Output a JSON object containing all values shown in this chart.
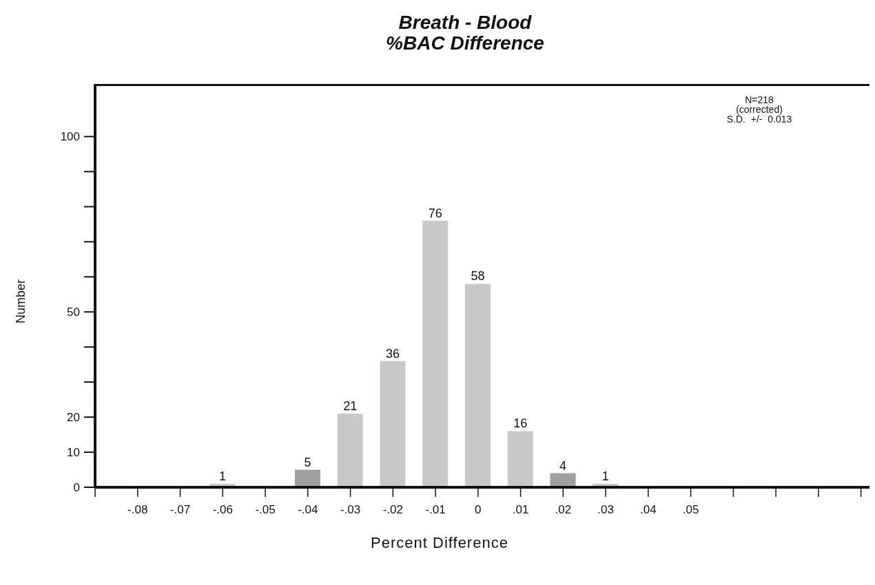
{
  "chart_data": {
    "type": "bar",
    "title": "Breath - Blood\n%BAC Difference",
    "xlabel": "Percent Difference",
    "ylabel": "Number",
    "x": [
      -0.06,
      -0.04,
      -0.03,
      -0.02,
      -0.01,
      0,
      0.01,
      0.02,
      0.03
    ],
    "values": [
      1,
      5,
      21,
      36,
      76,
      58,
      16,
      4,
      1
    ],
    "colors": [
      "#c8c8c8",
      "#a0a0a0",
      "#c8c8c8",
      "#c8c8c8",
      "#c8c8c8",
      "#c8c8c8",
      "#c8c8c8",
      "#a0a0a0",
      "#c8c8c8"
    ],
    "data_labels": true,
    "xlim": [
      -0.09,
      0.092
    ],
    "xticks": [
      {
        "value": -0.09,
        "label": null
      },
      {
        "value": -0.08,
        "label": "-.08"
      },
      {
        "value": -0.07,
        "label": "-.07"
      },
      {
        "value": -0.06,
        "label": "-.06"
      },
      {
        "value": -0.05,
        "label": "-.05"
      },
      {
        "value": -0.04,
        "label": "-.04"
      },
      {
        "value": -0.03,
        "label": "-.03"
      },
      {
        "value": -0.02,
        "label": "-.02"
      },
      {
        "value": -0.01,
        "label": "-.01"
      },
      0,
      {
        "value": 0.01,
        "label": ".01"
      },
      {
        "value": 0.02,
        "label": ".02"
      },
      {
        "value": 0.03,
        "label": ".03"
      },
      {
        "value": 0.04,
        "label": ".04"
      },
      {
        "value": 0.05,
        "label": ".05"
      },
      {
        "value": 0.06,
        "label": null
      },
      {
        "value": 0.07,
        "label": null
      },
      {
        "value": 0.08,
        "label": null
      },
      {
        "value": 0.09,
        "label": null
      }
    ],
    "ylim": [
      0,
      115
    ],
    "yticks": [
      0,
      10,
      20,
      {
        "value": 30,
        "label": null
      },
      {
        "value": 40,
        "label": null
      },
      50,
      {
        "value": 60,
        "label": null
      },
      {
        "value": 70,
        "label": null
      },
      {
        "value": 80,
        "label": null
      },
      {
        "value": 90,
        "label": null
      },
      100
    ],
    "grid": false,
    "legend": false,
    "annotations": [
      "N=218\n(corrected)\nS.D.  +/-  0.013"
    ]
  }
}
